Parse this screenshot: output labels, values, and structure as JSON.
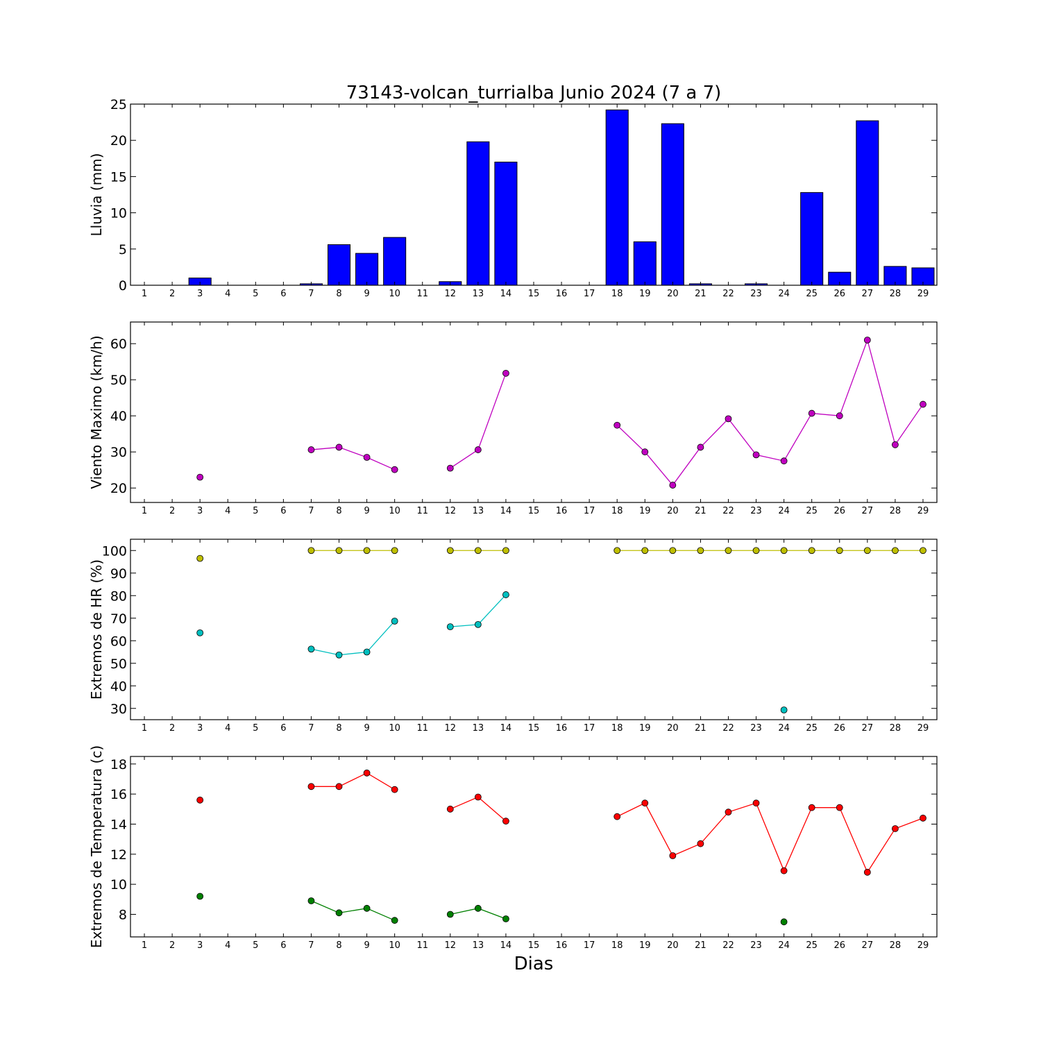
{
  "figure": {
    "title": "73143-volcan_turrialba Junio 2024  (7 a 7)",
    "xlabel": "Dias"
  },
  "chart_data": [
    {
      "type": "bar",
      "name": "lluvia",
      "ylabel": "Lluvia (mm)",
      "xlim": [
        0.5,
        29.5
      ],
      "ylim": [
        0,
        25
      ],
      "yticks": [
        0,
        5,
        10,
        15,
        20,
        25
      ],
      "xticks": [
        1,
        2,
        3,
        4,
        5,
        6,
        7,
        8,
        9,
        10,
        11,
        12,
        13,
        14,
        15,
        16,
        17,
        18,
        19,
        20,
        21,
        22,
        23,
        24,
        25,
        26,
        27,
        28,
        29
      ],
      "bar_color": "#0000ff",
      "x": [
        3,
        7,
        8,
        9,
        10,
        12,
        13,
        14,
        18,
        19,
        20,
        21,
        23,
        25,
        26,
        27,
        28,
        29
      ],
      "values": [
        1.0,
        0.2,
        5.6,
        4.4,
        6.6,
        0.5,
        19.8,
        17.0,
        24.2,
        6.0,
        22.3,
        0.2,
        0.2,
        12.8,
        1.8,
        22.7,
        2.6,
        2.4
      ]
    },
    {
      "type": "line",
      "name": "viento",
      "ylabel": "Viento Maximo (km/h)",
      "xlim": [
        0.5,
        29.5
      ],
      "ylim": [
        16,
        66
      ],
      "yticks": [
        20,
        30,
        40,
        50,
        60
      ],
      "xticks": [
        1,
        2,
        3,
        4,
        5,
        6,
        7,
        8,
        9,
        10,
        11,
        12,
        13,
        14,
        15,
        16,
        17,
        18,
        19,
        20,
        21,
        22,
        23,
        24,
        25,
        26,
        27,
        28,
        29
      ],
      "series": [
        {
          "color": "#bf00bf",
          "x": [
            3,
            7,
            8,
            9,
            10,
            12,
            13,
            14,
            18,
            19,
            20,
            21,
            22,
            23,
            24,
            25,
            26,
            27,
            28,
            29
          ],
          "values": [
            23.0,
            30.6,
            31.3,
            28.5,
            25.1,
            25.5,
            30.6,
            51.8,
            37.4,
            30.0,
            20.8,
            31.3,
            39.2,
            29.2,
            27.5,
            40.7,
            40.0,
            61.0,
            32.0,
            43.2
          ]
        }
      ]
    },
    {
      "type": "line",
      "name": "humedad",
      "ylabel": "Extremos de HR (%)",
      "xlim": [
        0.5,
        29.5
      ],
      "ylim": [
        25,
        105
      ],
      "yticks": [
        30,
        40,
        50,
        60,
        70,
        80,
        90,
        100
      ],
      "xticks": [
        1,
        2,
        3,
        4,
        5,
        6,
        7,
        8,
        9,
        10,
        11,
        12,
        13,
        14,
        15,
        16,
        17,
        18,
        19,
        20,
        21,
        22,
        23,
        24,
        25,
        26,
        27,
        28,
        29
      ],
      "series": [
        {
          "color": "#bfbf00",
          "x": [
            3,
            7,
            8,
            9,
            10,
            12,
            13,
            14,
            18,
            19,
            20,
            21,
            22,
            23,
            24,
            25,
            26,
            27,
            28,
            29
          ],
          "values": [
            96.5,
            100,
            100,
            100,
            100,
            100,
            100,
            100,
            100,
            100,
            100,
            100,
            100,
            100,
            100,
            100,
            100,
            100,
            100,
            100
          ]
        },
        {
          "color": "#00bfbf",
          "x": [
            3,
            7,
            8,
            9,
            10,
            12,
            13,
            14,
            24
          ],
          "values": [
            63.5,
            56.3,
            53.7,
            55.0,
            68.7,
            66.2,
            67.2,
            80.4,
            29.3
          ]
        }
      ]
    },
    {
      "type": "line",
      "name": "temperatura",
      "ylabel": "Extremos de Temperatura (c)",
      "xlim": [
        0.5,
        29.5
      ],
      "ylim": [
        6.5,
        18.5
      ],
      "yticks": [
        8,
        10,
        12,
        14,
        16,
        18
      ],
      "xticks": [
        1,
        2,
        3,
        4,
        5,
        6,
        7,
        8,
        9,
        10,
        11,
        12,
        13,
        14,
        15,
        16,
        17,
        18,
        19,
        20,
        21,
        22,
        23,
        24,
        25,
        26,
        27,
        28,
        29
      ],
      "series": [
        {
          "color": "#ff0000",
          "x": [
            3,
            7,
            8,
            9,
            10,
            12,
            13,
            14,
            18,
            19,
            20,
            21,
            22,
            23,
            24,
            25,
            26,
            27,
            28,
            29
          ],
          "values": [
            15.6,
            16.5,
            16.5,
            17.4,
            16.3,
            15.0,
            15.8,
            14.2,
            14.5,
            15.4,
            11.9,
            12.7,
            14.8,
            15.4,
            10.9,
            15.1,
            15.1,
            10.8,
            13.7,
            14.4
          ]
        },
        {
          "color": "#008000",
          "x": [
            3,
            7,
            8,
            9,
            10,
            12,
            13,
            14,
            24
          ],
          "values": [
            9.2,
            8.9,
            8.1,
            8.4,
            7.6,
            8.0,
            8.4,
            7.7,
            7.5
          ]
        }
      ]
    }
  ]
}
